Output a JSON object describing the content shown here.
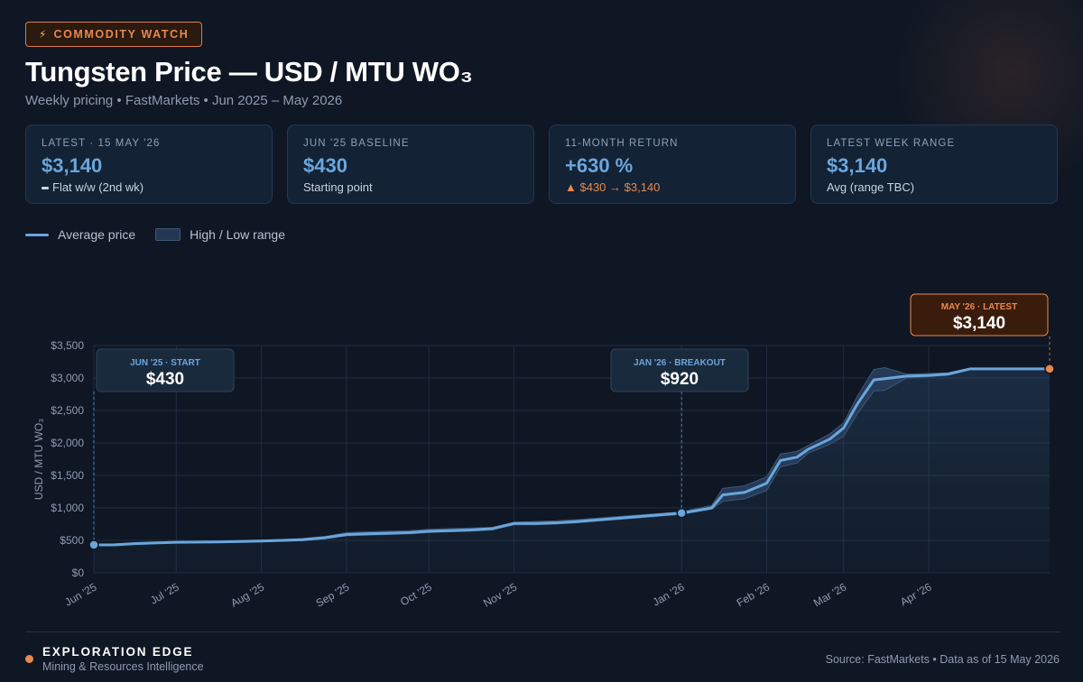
{
  "header": {
    "badge_icon": "bolt-icon",
    "badge": "COMMODITY WATCH",
    "title": "Tungsten Price — USD / MTU WO₃",
    "subtitle": "Weekly pricing • FastMarkets • Jun 2025 – May 2026"
  },
  "cards": [
    {
      "label": "LATEST · 15 MAY '26",
      "value": "$3,140",
      "sub": "Flat w/w (2nd wk)",
      "sub_style": "flat"
    },
    {
      "label": "JUN '25 BASELINE",
      "value": "$430",
      "sub": "Starting point",
      "sub_style": "plain"
    },
    {
      "label": "11-MONTH RETURN",
      "value": "+630 %",
      "sub": "▲ $430 → $3,140",
      "sub_style": "warm"
    },
    {
      "label": "LATEST WEEK RANGE",
      "value": "$3,140",
      "sub": "Avg (range TBC)",
      "sub_style": "plain"
    }
  ],
  "legend": {
    "line": "Average price",
    "band": "High / Low range"
  },
  "colors": {
    "line": "#6aa6dc",
    "band": "#2a4160",
    "accent": "#e8884d",
    "grid": "#1f2d40"
  },
  "chart_data": {
    "type": "line",
    "ylabel": "USD / MTU WO₃",
    "ylim": [
      0,
      3500
    ],
    "yticks": [
      0,
      500,
      1000,
      1500,
      2000,
      2500,
      3000,
      3500
    ],
    "ytick_labels": [
      "$0",
      "$500",
      "$1,000",
      "$1,500",
      "$2,000",
      "$2,500",
      "$3,000",
      "$3,500"
    ],
    "xtick_labels": [
      "Jun '25",
      "Jul '25",
      "Aug '25",
      "Sep '25",
      "Oct '25",
      "Nov '25",
      "Jan '26",
      "Feb '26",
      "Mar '26",
      "Apr '26"
    ],
    "xtick_dates": [
      "2025-06-01",
      "2025-07-01",
      "2025-08-01",
      "2025-09-01",
      "2025-10-01",
      "2025-11-01",
      "2026-01-01",
      "2026-02-01",
      "2026-03-01",
      "2026-04-01"
    ],
    "grid": true,
    "series": [
      {
        "name": "Average price",
        "x": [
          "2025-06-01",
          "2025-06-08",
          "2025-06-16",
          "2025-06-23",
          "2025-07-01",
          "2025-07-16",
          "2025-08-01",
          "2025-08-09",
          "2025-08-16",
          "2025-08-24",
          "2025-09-01",
          "2025-09-08",
          "2025-09-16",
          "2025-09-24",
          "2025-10-01",
          "2025-10-08",
          "2025-10-16",
          "2025-10-24",
          "2025-11-01",
          "2025-11-09",
          "2025-11-16",
          "2025-11-24",
          "2026-01-01",
          "2026-01-12",
          "2026-01-16",
          "2026-01-24",
          "2026-02-01",
          "2026-02-06",
          "2026-02-12",
          "2026-02-16",
          "2026-02-24",
          "2026-03-01",
          "2026-03-06",
          "2026-03-12",
          "2026-03-16",
          "2026-03-24",
          "2026-04-01",
          "2026-04-08",
          "2026-04-16",
          "2026-04-24",
          "2026-05-15"
        ],
        "values": [
          430,
          430,
          450,
          460,
          470,
          475,
          490,
          500,
          510,
          540,
          590,
          600,
          610,
          620,
          640,
          650,
          660,
          680,
          760,
          760,
          770,
          790,
          920,
          1000,
          1200,
          1240,
          1380,
          1730,
          1780,
          1900,
          2060,
          2230,
          2600,
          2970,
          2990,
          3030,
          3040,
          3060,
          3140,
          3140,
          3140
        ]
      },
      {
        "name": "High / Low range",
        "x": [
          "2025-06-01",
          "2025-06-08",
          "2025-06-16",
          "2025-06-23",
          "2025-07-01",
          "2025-07-16",
          "2025-08-01",
          "2025-08-09",
          "2025-08-16",
          "2025-08-24",
          "2025-09-01",
          "2025-09-08",
          "2025-09-16",
          "2025-09-24",
          "2025-10-01",
          "2025-10-08",
          "2025-10-16",
          "2025-10-24",
          "2025-11-01",
          "2025-11-09",
          "2025-11-16",
          "2025-11-24",
          "2026-01-01",
          "2026-01-12",
          "2026-01-16",
          "2026-01-24",
          "2026-02-01",
          "2026-02-06",
          "2026-02-12",
          "2026-02-16",
          "2026-02-24",
          "2026-03-01",
          "2026-03-06",
          "2026-03-12",
          "2026-03-16",
          "2026-03-24",
          "2026-04-01",
          "2026-04-08",
          "2026-04-16",
          "2026-04-24",
          "2026-05-15"
        ],
        "high": [
          445,
          445,
          465,
          475,
          485,
          490,
          505,
          515,
          530,
          560,
          620,
          630,
          640,
          650,
          670,
          680,
          690,
          700,
          780,
          790,
          800,
          820,
          940,
          1040,
          1300,
          1340,
          1480,
          1830,
          1870,
          1960,
          2140,
          2310,
          2720,
          3130,
          3160,
          3060,
          3070,
          3080,
          3150,
          3150,
          3150
        ],
        "low": [
          420,
          420,
          440,
          450,
          460,
          465,
          480,
          490,
          495,
          525,
          570,
          580,
          590,
          600,
          620,
          630,
          640,
          660,
          740,
          740,
          750,
          770,
          900,
          980,
          1100,
          1140,
          1270,
          1630,
          1690,
          1840,
          1980,
          2100,
          2450,
          2800,
          2810,
          3000,
          3020,
          3040,
          3130,
          3130,
          3130
        ]
      }
    ],
    "annotations": [
      {
        "label": "JUN '25 · START",
        "value_label": "$430",
        "x": "2025-06-01",
        "y": 430
      },
      {
        "label": "JAN '26 · BREAKOUT",
        "value_label": "$920",
        "x": "2026-01-01",
        "y": 920
      },
      {
        "label": "MAY '26 · LATEST",
        "value_label": "$3,140",
        "x": "2026-05-15",
        "y": 3140
      }
    ]
  },
  "footer": {
    "brand": "EXPLORATION EDGE",
    "brand_sub": "Mining & Resources Intelligence",
    "source": "Source: FastMarkets • Data as of 15 May 2026"
  }
}
